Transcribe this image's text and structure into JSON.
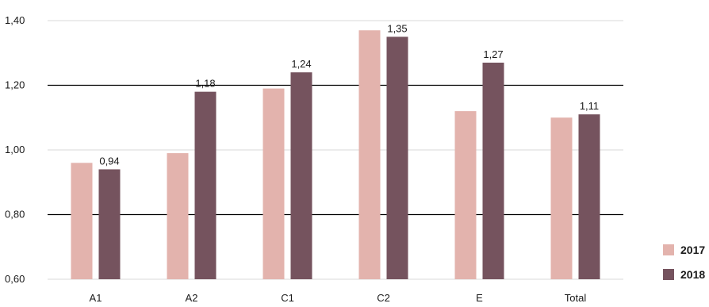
{
  "chart_data": {
    "type": "bar",
    "categories": [
      "A1",
      "A2",
      "C1",
      "C2",
      "E",
      "Total"
    ],
    "series": [
      {
        "name": "2017",
        "values": [
          0.96,
          0.99,
          1.19,
          1.37,
          1.12,
          1.1
        ],
        "labels": [
          "",
          "",
          "",
          "",
          "",
          ""
        ]
      },
      {
        "name": "2018",
        "values": [
          0.94,
          1.18,
          1.24,
          1.35,
          1.27,
          1.11
        ],
        "labels": [
          "0,94",
          "1,18",
          "1,24",
          "1,35",
          "1,27",
          "1,11"
        ]
      }
    ],
    "colors": {
      "2017": "#e3b3ad",
      "2018": "#75535e"
    },
    "ylim": [
      0.6,
      1.4
    ],
    "yticks": [
      {
        "value": 0.6,
        "label": "0,60"
      },
      {
        "value": 0.8,
        "label": "0,80"
      },
      {
        "value": 1.0,
        "label": "1,00"
      },
      {
        "value": 1.2,
        "label": "1,20"
      },
      {
        "value": 1.4,
        "label": "1,40"
      }
    ],
    "emphasized_gridlines": [
      0.8,
      1.2
    ],
    "legend_position": "bottom-right",
    "title": "",
    "xlabel": "",
    "ylabel": ""
  }
}
